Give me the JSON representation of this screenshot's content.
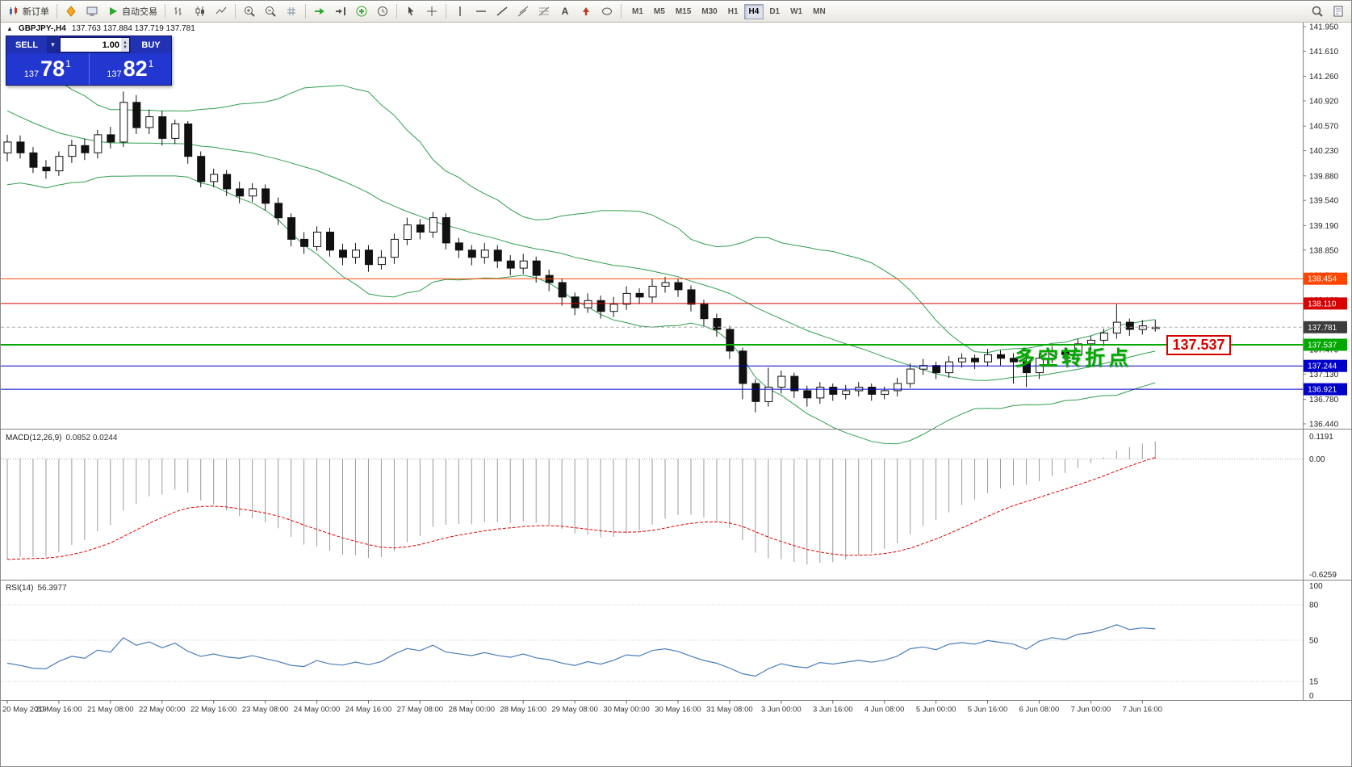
{
  "toolbar": {
    "groups": [
      [
        {
          "name": "new-order-button",
          "icon": "candle-chart",
          "label": "新订单"
        }
      ],
      [
        {
          "name": "metaquotes-button",
          "icon": "mq-diamond"
        },
        {
          "name": "profiles-button",
          "icon": "profiles"
        },
        {
          "name": "autotrading-button",
          "icon": "play",
          "label": "自动交易"
        }
      ],
      [
        {
          "name": "bars-chart-button",
          "icon": "bars"
        },
        {
          "name": "candlestick-chart-button",
          "icon": "candles"
        },
        {
          "name": "line-chart-button",
          "icon": "linechart"
        }
      ],
      [
        {
          "name": "zoom-in-button",
          "icon": "zoom-in"
        },
        {
          "name": "zoom-out-button",
          "icon": "zoom-out"
        },
        {
          "name": "grid-button",
          "icon": "grid"
        }
      ],
      [
        {
          "name": "auto-scroll-button",
          "icon": "autoscroll"
        },
        {
          "name": "chart-shift-button",
          "icon": "chartshift"
        },
        {
          "name": "indicators-button",
          "icon": "indicators"
        },
        {
          "name": "periods-button",
          "icon": "clock"
        }
      ],
      [
        {
          "name": "cursor-button",
          "icon": "cursor"
        },
        {
          "name": "crosshair-button",
          "icon": "crosshair"
        }
      ],
      [
        {
          "name": "vertical-line-button",
          "icon": "vline"
        },
        {
          "name": "horizontal-line-button",
          "icon": "hline"
        },
        {
          "name": "trendline-button",
          "icon": "trendline"
        },
        {
          "name": "equidistant-channel-button",
          "icon": "channel"
        },
        {
          "name": "fibonacci-button",
          "icon": "fibo"
        },
        {
          "name": "text-label-button",
          "icon": "text"
        },
        {
          "name": "arrow-object-button",
          "icon": "arrows"
        },
        {
          "name": "shapes-button",
          "icon": "shapes"
        }
      ]
    ],
    "timeframes": [
      "M1",
      "M5",
      "M15",
      "M30",
      "H1",
      "H4",
      "D1",
      "W1",
      "MN"
    ],
    "active_timeframe": "H4",
    "right_buttons": [
      {
        "name": "search-button",
        "icon": "search"
      },
      {
        "name": "data-window-button",
        "icon": "doc"
      }
    ]
  },
  "chart": {
    "collapse_arrow": "▲",
    "symbol": "GBPJPY-,H4",
    "ohlc": "137.763 137.884 137.719 137.781",
    "annotation": {
      "text": "多空转折点",
      "color": "#00A800"
    },
    "price_callout": {
      "text": "137.537",
      "color": "#D60000"
    },
    "trade_panel": {
      "sell_label": "SELL",
      "buy_label": "BUY",
      "volume": "1.00",
      "sell_small": "137",
      "sell_big": "78",
      "sell_sup": "1",
      "buy_small": "137",
      "buy_big": "82",
      "buy_sup": "1"
    },
    "y_labels": [
      "141.950",
      "141.610",
      "141.260",
      "140.920",
      "140.570",
      "140.230",
      "139.880",
      "139.540",
      "139.190",
      "138.850",
      "138.500",
      "138.160",
      "137.810",
      "137.470",
      "137.130",
      "136.780",
      "136.440"
    ],
    "levels": [
      {
        "price": 138.454,
        "label": "138.454",
        "color": "#FF4500",
        "width": 1
      },
      {
        "price": 138.11,
        "label": "138.110",
        "color": "#D60000",
        "width": 1
      },
      {
        "price": 137.781,
        "label": "137.781",
        "color": "#3C3C3C",
        "line_color": "#ABABAB",
        "width": 1,
        "role": "current-price"
      },
      {
        "price": 137.537,
        "label": "137.537",
        "color": "#00A800",
        "width": 2
      },
      {
        "price": 137.244,
        "label": "137.244",
        "color": "#0000C8",
        "width": 1
      },
      {
        "price": 136.921,
        "label": "136.921",
        "color": "#0000C8",
        "width": 1
      }
    ],
    "time_labels": [
      "20 May 2019",
      "20 May 16:00",
      "21 May 08:00",
      "22 May 00:00",
      "22 May 16:00",
      "23 May 08:00",
      "24 May 00:00",
      "24 May 16:00",
      "27 May 08:00",
      "28 May 00:00",
      "28 May 16:00",
      "29 May 08:00",
      "30 May 00:00",
      "30 May 16:00",
      "31 May 08:00",
      "3 Jun 00:00",
      "3 Jun 16:00",
      "4 Jun 08:00",
      "5 Jun 00:00",
      "5 Jun 16:00",
      "6 Jun 08:00",
      "7 Jun 00:00",
      "7 Jun 16:00"
    ]
  },
  "macd": {
    "title": "MACD(12,26,9)",
    "values": "0.0852 0.0244",
    "scale_top": "0.1191",
    "scale_zero": "0.00",
    "scale_bottom": "-0.6259"
  },
  "rsi": {
    "title": "RSI(14)",
    "value": "56.3977",
    "levels": [
      "100",
      "80",
      "50",
      "15",
      "0"
    ]
  },
  "chart_data": {
    "type": "candlestick",
    "symbol": "GBPJPY",
    "timeframe": "H4",
    "y_range": [
      136.44,
      141.95
    ],
    "indicators": [
      {
        "name": "Bollinger Bands",
        "period": 20,
        "deviation": 2,
        "color": "#2F9E4F"
      },
      {
        "name": "MACD",
        "fast": 12,
        "slow": 26,
        "signal": 9
      },
      {
        "name": "RSI",
        "period": 14
      }
    ],
    "indicator_prehistory_closes": [
      142.6,
      142.4,
      142.5,
      142.2,
      142.0,
      142.1,
      141.8,
      141.9,
      141.6,
      141.4,
      141.5,
      141.2,
      141.0,
      141.1,
      140.8,
      140.9,
      140.6,
      140.7,
      140.5,
      140.6,
      140.3,
      140.4,
      140.2,
      140.3,
      140.1,
      140.2
    ],
    "candles": [
      [
        140.2,
        140.45,
        140.08,
        140.35
      ],
      [
        140.35,
        140.44,
        140.12,
        140.2
      ],
      [
        140.2,
        140.28,
        139.92,
        140.0
      ],
      [
        140.0,
        140.1,
        139.84,
        139.95
      ],
      [
        139.95,
        140.22,
        139.88,
        140.15
      ],
      [
        140.15,
        140.38,
        140.06,
        140.3
      ],
      [
        140.3,
        140.4,
        140.1,
        140.2
      ],
      [
        140.2,
        140.52,
        140.12,
        140.45
      ],
      [
        140.45,
        140.56,
        140.26,
        140.35
      ],
      [
        140.35,
        141.05,
        140.28,
        140.9
      ],
      [
        140.9,
        141.0,
        140.46,
        140.55
      ],
      [
        140.55,
        140.8,
        140.46,
        140.7
      ],
      [
        140.7,
        140.78,
        140.3,
        140.4
      ],
      [
        140.4,
        140.66,
        140.32,
        140.6
      ],
      [
        140.6,
        140.64,
        140.05,
        140.15
      ],
      [
        140.15,
        140.22,
        139.72,
        139.8
      ],
      [
        139.8,
        139.98,
        139.72,
        139.9
      ],
      [
        139.9,
        139.96,
        139.6,
        139.7
      ],
      [
        139.7,
        139.8,
        139.5,
        139.6
      ],
      [
        139.6,
        139.78,
        139.52,
        139.7
      ],
      [
        139.7,
        139.76,
        139.4,
        139.5
      ],
      [
        139.5,
        139.58,
        139.2,
        139.3
      ],
      [
        139.3,
        139.36,
        138.9,
        139.0
      ],
      [
        139.0,
        139.1,
        138.8,
        138.9
      ],
      [
        138.9,
        139.18,
        138.84,
        139.1
      ],
      [
        139.1,
        139.16,
        138.76,
        138.85
      ],
      [
        138.85,
        138.94,
        138.64,
        138.75
      ],
      [
        138.75,
        138.95,
        138.66,
        138.85
      ],
      [
        138.85,
        138.92,
        138.55,
        138.65
      ],
      [
        138.65,
        138.85,
        138.58,
        138.75
      ],
      [
        138.75,
        139.08,
        138.66,
        139.0
      ],
      [
        139.0,
        139.3,
        138.92,
        139.2
      ],
      [
        139.2,
        139.28,
        139.0,
        139.1
      ],
      [
        139.1,
        139.38,
        139.02,
        139.3
      ],
      [
        139.3,
        139.36,
        138.86,
        138.95
      ],
      [
        138.95,
        139.02,
        138.74,
        138.85
      ],
      [
        138.85,
        138.92,
        138.64,
        138.75
      ],
      [
        138.75,
        138.95,
        138.66,
        138.85
      ],
      [
        138.85,
        138.92,
        138.6,
        138.7
      ],
      [
        138.7,
        138.78,
        138.5,
        138.6
      ],
      [
        138.6,
        138.8,
        138.52,
        138.7
      ],
      [
        138.7,
        138.76,
        138.4,
        138.5
      ],
      [
        138.5,
        138.58,
        138.28,
        138.4
      ],
      [
        138.4,
        138.46,
        138.08,
        138.2
      ],
      [
        138.2,
        138.26,
        137.95,
        138.05
      ],
      [
        138.05,
        138.25,
        137.98,
        138.15
      ],
      [
        138.15,
        138.22,
        137.9,
        138.0
      ],
      [
        138.0,
        138.2,
        137.92,
        138.1
      ],
      [
        138.1,
        138.35,
        138.02,
        138.25
      ],
      [
        138.25,
        138.32,
        138.1,
        138.2
      ],
      [
        138.2,
        138.45,
        138.12,
        138.35
      ],
      [
        138.35,
        138.48,
        138.26,
        138.4
      ],
      [
        138.4,
        138.46,
        138.2,
        138.3
      ],
      [
        138.3,
        138.36,
        138.0,
        138.1
      ],
      [
        138.1,
        138.16,
        137.8,
        137.9
      ],
      [
        137.9,
        137.97,
        137.65,
        137.75
      ],
      [
        137.75,
        137.8,
        137.34,
        137.45
      ],
      [
        137.45,
        137.5,
        136.78,
        137.0
      ],
      [
        137.0,
        137.06,
        136.6,
        136.75
      ],
      [
        136.75,
        137.22,
        136.68,
        136.95
      ],
      [
        136.95,
        137.18,
        136.86,
        137.1
      ],
      [
        137.1,
        137.15,
        136.8,
        136.9
      ],
      [
        136.9,
        136.97,
        136.68,
        136.8
      ],
      [
        136.8,
        137.02,
        136.72,
        136.95
      ],
      [
        136.95,
        137.0,
        136.76,
        136.85
      ],
      [
        136.85,
        136.98,
        136.78,
        136.9
      ],
      [
        136.9,
        137.02,
        136.82,
        136.95
      ],
      [
        136.95,
        137.0,
        136.76,
        136.85
      ],
      [
        136.85,
        136.96,
        136.78,
        136.9
      ],
      [
        136.9,
        137.08,
        136.82,
        137.0
      ],
      [
        137.0,
        137.28,
        136.94,
        137.2
      ],
      [
        137.2,
        137.34,
        137.12,
        137.25
      ],
      [
        137.25,
        137.3,
        137.06,
        137.15
      ],
      [
        137.15,
        137.38,
        137.08,
        137.3
      ],
      [
        137.3,
        137.42,
        137.22,
        137.35
      ],
      [
        137.35,
        137.4,
        137.2,
        137.3
      ],
      [
        137.3,
        137.48,
        137.24,
        137.4
      ],
      [
        137.4,
        137.46,
        137.25,
        137.35
      ],
      [
        137.35,
        137.42,
        137.0,
        137.3
      ],
      [
        137.3,
        137.36,
        136.95,
        137.15
      ],
      [
        137.15,
        137.42,
        137.06,
        137.35
      ],
      [
        137.35,
        137.52,
        137.28,
        137.45
      ],
      [
        137.45,
        137.5,
        137.3,
        137.4
      ],
      [
        137.4,
        137.62,
        137.34,
        137.55
      ],
      [
        137.55,
        137.66,
        137.46,
        137.6
      ],
      [
        137.6,
        137.76,
        137.52,
        137.7
      ],
      [
        137.7,
        138.1,
        137.62,
        137.85
      ],
      [
        137.85,
        137.9,
        137.66,
        137.75
      ],
      [
        137.75,
        137.88,
        137.68,
        137.8
      ],
      [
        137.763,
        137.884,
        137.719,
        137.781
      ]
    ]
  }
}
